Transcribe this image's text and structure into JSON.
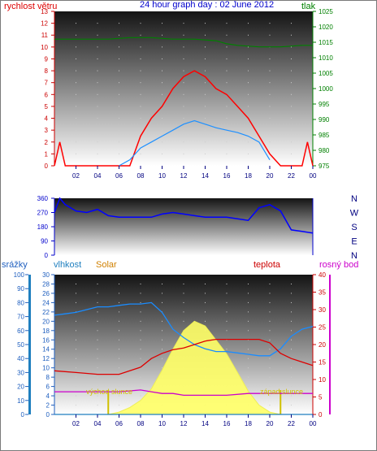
{
  "header": {
    "title": "24 hour graph day : 02 June 2012",
    "left_axis": "rychlost větru",
    "right_axis": "tlak"
  },
  "direction_labels": [
    "N",
    "W",
    "S",
    "E",
    "N"
  ],
  "bottom_header": {
    "rain": "srážky",
    "humidity": "vlhkost",
    "solar": "Solar",
    "temperature": "teplota",
    "dewpoint": "rosný bod"
  },
  "annotations": {
    "sunrise": "východ slunce",
    "sunset": "západ slunce"
  },
  "colors": {
    "wind": "#ff0000",
    "gust": "#ff0000",
    "avg_wind": "#1e90ff",
    "pressure": "#008000",
    "direction": "#0000ff",
    "humidity": "#1a8cff",
    "solar": "#ffff66",
    "temperature": "#dd0000",
    "dewpoint": "#cc00cc",
    "rain": "#1f7fbf"
  },
  "chart_data": [
    {
      "type": "line",
      "title": "24 hour graph day : 02 June 2012",
      "x_ticks": [
        "02",
        "04",
        "06",
        "08",
        "10",
        "12",
        "14",
        "16",
        "18",
        "20",
        "22",
        "00"
      ],
      "ylabel": "rychlost větru",
      "ylim": [
        0,
        13
      ],
      "y_ticks": [
        0,
        1,
        2,
        3,
        4,
        5,
        6,
        7,
        8,
        9,
        10,
        11,
        12,
        13
      ],
      "y2label": "tlak",
      "y2lim": [
        975,
        1025
      ],
      "y2_ticks": [
        975,
        980,
        985,
        990,
        995,
        1000,
        1005,
        1010,
        1015,
        1020,
        1025
      ],
      "series": [
        {
          "role": "gust",
          "x": [
            0,
            0.5,
            1,
            3,
            5,
            6,
            7,
            8,
            9,
            10,
            11,
            12,
            13,
            14,
            15,
            16,
            17,
            18,
            19,
            20,
            21,
            22,
            23,
            23.5,
            24
          ],
          "values": [
            0,
            2,
            0,
            0,
            0,
            0,
            0,
            2.5,
            4,
            5,
            6.5,
            7.5,
            8,
            7.5,
            6.5,
            6,
            5,
            4,
            2.5,
            1,
            0,
            0,
            0,
            2,
            0
          ]
        },
        {
          "role": "average",
          "x": [
            6,
            7,
            8,
            9,
            10,
            11,
            12,
            13,
            14,
            15,
            16,
            17,
            18,
            19,
            20
          ],
          "values": [
            0,
            0.5,
            1.5,
            2,
            2.5,
            3,
            3.5,
            3.8,
            3.5,
            3.2,
            3,
            2.8,
            2.5,
            2,
            0.5
          ]
        },
        {
          "role": "pressure",
          "axis": "right",
          "x": [
            0,
            1,
            3,
            5,
            7,
            9,
            11,
            13,
            15,
            16,
            17,
            19,
            21,
            23,
            24
          ],
          "values": [
            1016,
            1016,
            1016,
            1016,
            1016.5,
            1016.5,
            1016,
            1016,
            1015.5,
            1014.5,
            1014,
            1013.5,
            1013.5,
            1014,
            1014
          ]
        }
      ]
    },
    {
      "type": "line",
      "ylim": [
        0,
        360
      ],
      "y_ticks": [
        0,
        90,
        180,
        270,
        360
      ],
      "series": [
        {
          "role": "direction",
          "x": [
            0,
            0.5,
            1,
            2,
            3,
            4,
            5,
            6,
            7,
            8,
            9,
            10,
            11,
            12,
            13,
            14,
            15,
            16,
            17,
            18,
            19,
            20,
            21,
            22,
            23,
            24
          ],
          "values": [
            270,
            360,
            320,
            280,
            270,
            290,
            250,
            240,
            240,
            240,
            240,
            260,
            270,
            260,
            250,
            240,
            240,
            240,
            230,
            220,
            300,
            320,
            280,
            160,
            150,
            140
          ]
        }
      ]
    },
    {
      "type": "area",
      "left_axes": [
        {
          "name": "srážky",
          "ylim": [
            0,
            100
          ],
          "ticks": [
            0,
            10,
            20,
            30,
            40,
            50,
            60,
            70,
            80,
            90,
            100
          ]
        },
        {
          "name": "vlhkost",
          "ylim": [
            0,
            30
          ],
          "ticks": [
            0,
            2,
            4,
            6,
            8,
            10,
            12,
            14,
            16,
            18,
            20,
            22,
            24,
            26,
            28,
            30
          ]
        }
      ],
      "right_axis": {
        "name": "teplota",
        "ylim": [
          0,
          40
        ],
        "ticks": [
          0,
          5,
          10,
          15,
          20,
          25,
          30,
          35,
          40
        ]
      },
      "series": [
        {
          "role": "solar",
          "x": [
            5,
            6,
            7,
            8,
            9,
            10,
            11,
            12,
            13,
            14,
            15,
            16,
            17,
            18,
            19,
            20,
            21
          ],
          "values": [
            0,
            0.5,
            1.5,
            3,
            5.5,
            9.5,
            14,
            18,
            20,
            19,
            16,
            13,
            9,
            5,
            2,
            0.5,
            0
          ]
        },
        {
          "role": "humidity",
          "axis": "vlhkost-%",
          "x": [
            0,
            1,
            2,
            3,
            4,
            5,
            6,
            7,
            8,
            9,
            10,
            11,
            12,
            13,
            14,
            15,
            16,
            17,
            18,
            19,
            20,
            21,
            22,
            23,
            24
          ],
          "values": [
            71,
            72,
            73,
            75,
            77,
            77,
            78,
            79,
            79,
            80,
            73,
            61,
            55,
            50,
            47,
            45,
            45,
            44,
            43,
            42,
            42,
            47,
            56,
            61,
            63
          ]
        },
        {
          "role": "temperature",
          "axis": "right",
          "x": [
            0,
            2,
            4,
            6,
            8,
            9,
            10,
            11,
            12,
            13,
            14,
            15,
            16,
            17,
            18,
            19,
            20,
            21,
            22,
            23,
            24
          ],
          "values": [
            12.5,
            12,
            11.5,
            11.5,
            13.5,
            16,
            17.5,
            18.5,
            19,
            20,
            21,
            21.5,
            21.5,
            21.5,
            21.5,
            21.5,
            20.5,
            17.5,
            16,
            15,
            14
          ]
        },
        {
          "role": "dewpoint",
          "axis": "right",
          "x": [
            0,
            2,
            4,
            6,
            8,
            9,
            10,
            11,
            12,
            14,
            16,
            18,
            20,
            22,
            24
          ],
          "values": [
            6.5,
            6.5,
            6.5,
            6.5,
            7,
            6.5,
            6,
            6,
            5.5,
            5.5,
            5.5,
            6,
            6,
            6,
            6
          ]
        },
        {
          "role": "rain",
          "axis": "srážky",
          "x": [
            0,
            24
          ],
          "values": [
            0,
            0
          ]
        }
      ]
    }
  ]
}
